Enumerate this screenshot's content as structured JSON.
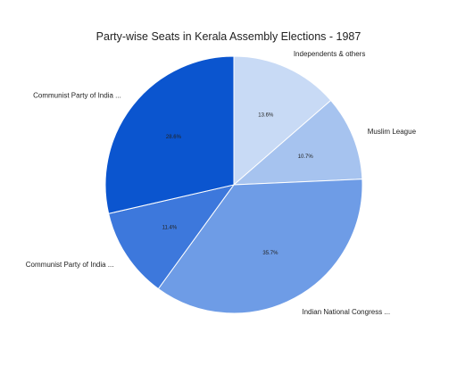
{
  "chart_data": {
    "type": "pie",
    "title": "Party-wise Seats in Kerala Assembly Elections - 1987",
    "slices": [
      {
        "label": "Independents & others",
        "value": 13.6,
        "value_label": "13.6%",
        "color": "#c8daf5"
      },
      {
        "label": "Muslim League",
        "value": 10.7,
        "value_label": "10.7%",
        "color": "#a6c3ef"
      },
      {
        "label": "Indian National Congress ...",
        "value": 35.7,
        "value_label": "35.7%",
        "color": "#6e9ce6"
      },
      {
        "label": "Communist Party of India ...",
        "value": 11.4,
        "value_label": "11.4%",
        "color": "#3d78dc"
      },
      {
        "label": "Communist Party of India ...",
        "value": 28.6,
        "value_label": "28.6%",
        "color": "#0b55cf"
      }
    ],
    "start_angle_deg": 0,
    "direction": "clockwise",
    "legend": "labels-outside"
  }
}
